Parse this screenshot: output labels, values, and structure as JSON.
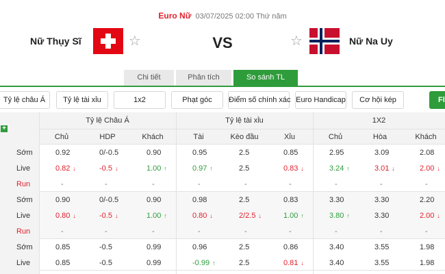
{
  "match": {
    "league": "Euro Nữ",
    "datetime": "03/07/2025 02:00 Thứ năm",
    "home": "Nữ Thụy Sĩ",
    "away": "Nữ Na Uy",
    "vs": "VS"
  },
  "tabs": [
    {
      "label": "Chi tiết",
      "active": false
    },
    {
      "label": "Phân tích",
      "active": false
    },
    {
      "label": "So sánh TL",
      "active": true
    }
  ],
  "filters": [
    "Tỷ lệ châu Á",
    "Tỷ lệ tài xỉu",
    "1x2",
    "Phạt góc",
    "Điểm số chính xác",
    "Euro Handicap",
    "Cơ hội kép",
    "Fl"
  ],
  "table": {
    "groups": [
      "Tỷ lệ Châu Á",
      "Tỷ lệ tài xỉu",
      "1X2"
    ],
    "subheaders": [
      "Chủ",
      "HDP",
      "Khách",
      "Tài",
      "Kèo đầu",
      "Xỉu",
      "Chủ",
      "Hòa",
      "Khách"
    ],
    "rows": [
      {
        "label": "Sớm",
        "cells": [
          [
            "0.92",
            ""
          ],
          [
            "0/-0.5",
            ""
          ],
          [
            "0.90",
            ""
          ],
          [
            "0.95",
            ""
          ],
          [
            "2.5",
            ""
          ],
          [
            "0.85",
            ""
          ],
          [
            "2.95",
            ""
          ],
          [
            "3.09",
            ""
          ],
          [
            "2.08",
            ""
          ]
        ]
      },
      {
        "label": "Live",
        "cells": [
          [
            "0.82",
            "down"
          ],
          [
            "-0.5",
            "down"
          ],
          [
            "1.00",
            "up"
          ],
          [
            "0.97",
            "up"
          ],
          [
            "2.5",
            ""
          ],
          [
            "0.83",
            "down"
          ],
          [
            "3.24",
            "up"
          ],
          [
            "3.01",
            "down"
          ],
          [
            "2.00",
            "down"
          ]
        ]
      },
      {
        "label": "Run",
        "cells": [
          [
            "-",
            ""
          ],
          [
            "-",
            ""
          ],
          [
            "-",
            ""
          ],
          [
            "-",
            ""
          ],
          [
            "-",
            ""
          ],
          [
            "-",
            ""
          ],
          [
            "-",
            ""
          ],
          [
            "-",
            ""
          ],
          [
            "-",
            ""
          ]
        ]
      },
      {
        "label": "Sớm",
        "cells": [
          [
            "0.90",
            ""
          ],
          [
            "0/-0.5",
            ""
          ],
          [
            "0.90",
            ""
          ],
          [
            "0.98",
            ""
          ],
          [
            "2.5",
            ""
          ],
          [
            "0.83",
            ""
          ],
          [
            "3.30",
            ""
          ],
          [
            "3.30",
            ""
          ],
          [
            "2.20",
            ""
          ]
        ]
      },
      {
        "label": "Live",
        "cells": [
          [
            "0.80",
            "down"
          ],
          [
            "-0.5",
            "down"
          ],
          [
            "1.00",
            "up"
          ],
          [
            "0.80",
            "down"
          ],
          [
            "2/2.5",
            "down"
          ],
          [
            "1.00",
            "up"
          ],
          [
            "3.80",
            "up"
          ],
          [
            "3.30",
            ""
          ],
          [
            "2.00",
            "down"
          ]
        ]
      },
      {
        "label": "Run",
        "cells": [
          [
            "-",
            ""
          ],
          [
            "-",
            ""
          ],
          [
            "-",
            ""
          ],
          [
            "-",
            ""
          ],
          [
            "-",
            ""
          ],
          [
            "-",
            ""
          ],
          [
            "-",
            ""
          ],
          [
            "-",
            ""
          ],
          [
            "-",
            ""
          ]
        ]
      },
      {
        "label": "Sớm",
        "cells": [
          [
            "0.85",
            ""
          ],
          [
            "-0.5",
            ""
          ],
          [
            "0.99",
            ""
          ],
          [
            "0.96",
            ""
          ],
          [
            "2.5",
            ""
          ],
          [
            "0.86",
            ""
          ],
          [
            "3.40",
            ""
          ],
          [
            "3.55",
            ""
          ],
          [
            "1.98",
            ""
          ]
        ]
      },
      {
        "label": "Live",
        "cells": [
          [
            "0.85",
            ""
          ],
          [
            "-0.5",
            ""
          ],
          [
            "0.99",
            ""
          ],
          [
            "-0.99",
            "up"
          ],
          [
            "2.5",
            ""
          ],
          [
            "0.81",
            "down"
          ],
          [
            "3.40",
            ""
          ],
          [
            "3.55",
            ""
          ],
          [
            "1.98",
            ""
          ]
        ]
      }
    ]
  },
  "colors": {
    "accent_green": "#2e9c3a",
    "down_red": "#e0202c",
    "up_green": "#2e9c3a"
  },
  "icons": {
    "favorite": "star-outline-icon",
    "arrow_up": "arrow-up-icon",
    "arrow_down": "arrow-down-icon",
    "expand": "plus-icon"
  }
}
